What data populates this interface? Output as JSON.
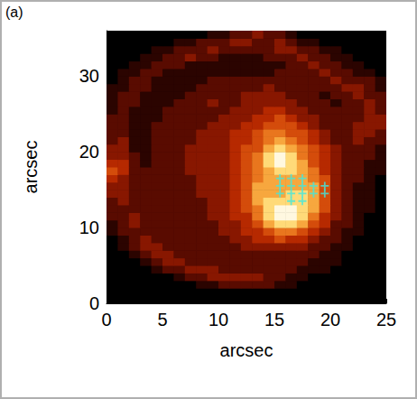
{
  "chart_data": {
    "type": "heatmap",
    "panel": "(a)",
    "xlabel": "arcsec",
    "ylabel": "arcsec",
    "xlim": [
      0,
      25
    ],
    "ylim": [
      0,
      36
    ],
    "xticks": [
      0,
      5,
      10,
      15,
      20,
      25
    ],
    "yticks": [
      0,
      10,
      20,
      30
    ],
    "grid": false,
    "x": [
      0,
      1,
      2,
      3,
      4,
      5,
      6,
      7,
      8,
      9,
      10,
      11,
      12,
      13,
      14,
      15,
      16,
      17,
      18,
      19,
      20,
      21,
      22,
      23,
      24
    ],
    "y": [
      0,
      1,
      2,
      3,
      4,
      5,
      6,
      7,
      8,
      9,
      10,
      11,
      12,
      13,
      14,
      15,
      16,
      17,
      18,
      19,
      20,
      21,
      22,
      23,
      24,
      25,
      26,
      27,
      28,
      29,
      30,
      31,
      32,
      33,
      34,
      35
    ],
    "color_range": [
      0,
      9
    ],
    "cells": [
      [
        0,
        0,
        0,
        0,
        0,
        0,
        0,
        0,
        0,
        0,
        0,
        0,
        0,
        0,
        0,
        0,
        0,
        0,
        0,
        0,
        0,
        0,
        0,
        0,
        0
      ],
      [
        0,
        0,
        0,
        0,
        0,
        0,
        0,
        0,
        0,
        0,
        0,
        0,
        0,
        0,
        0,
        0,
        0,
        0,
        0,
        0,
        0,
        0,
        0,
        0,
        0
      ],
      [
        0,
        0,
        0,
        0,
        0,
        0,
        0,
        0,
        1,
        1,
        2,
        2,
        2,
        2,
        2,
        1,
        1,
        0,
        0,
        0,
        0,
        0,
        0,
        0,
        0
      ],
      [
        0,
        0,
        0,
        0,
        0,
        0,
        1,
        2,
        2,
        3,
        3,
        3,
        3,
        3,
        2,
        2,
        1,
        1,
        0,
        0,
        0,
        0,
        0,
        0,
        0
      ],
      [
        0,
        0,
        0,
        0,
        1,
        2,
        2,
        3,
        3,
        3,
        2,
        2,
        2,
        2,
        2,
        2,
        2,
        1,
        1,
        1,
        0,
        0,
        0,
        0,
        0
      ],
      [
        0,
        0,
        0,
        1,
        2,
        3,
        3,
        2,
        2,
        2,
        2,
        2,
        2,
        2,
        2,
        2,
        2,
        2,
        1,
        1,
        1,
        0,
        0,
        0,
        0
      ],
      [
        0,
        0,
        1,
        2,
        3,
        3,
        2,
        2,
        2,
        2,
        2,
        2,
        2,
        2,
        2,
        2,
        2,
        2,
        2,
        1,
        1,
        0,
        0,
        0,
        0
      ],
      [
        0,
        1,
        2,
        3,
        3,
        2,
        2,
        2,
        2,
        2,
        2,
        2,
        3,
        3,
        3,
        3,
        3,
        3,
        2,
        2,
        1,
        1,
        0,
        0,
        0
      ],
      [
        0,
        1,
        2,
        3,
        2,
        2,
        2,
        2,
        2,
        2,
        2,
        3,
        3,
        4,
        4,
        5,
        4,
        4,
        3,
        2,
        2,
        1,
        0,
        0,
        0
      ],
      [
        1,
        2,
        2,
        2,
        2,
        2,
        2,
        2,
        2,
        2,
        3,
        3,
        4,
        4,
        5,
        6,
        6,
        5,
        4,
        3,
        2,
        1,
        1,
        0,
        0
      ],
      [
        1,
        2,
        3,
        2,
        2,
        2,
        2,
        2,
        2,
        2,
        3,
        3,
        4,
        5,
        7,
        8,
        8,
        7,
        5,
        4,
        2,
        2,
        1,
        0,
        0
      ],
      [
        2,
        2,
        3,
        2,
        2,
        2,
        2,
        2,
        2,
        3,
        3,
        4,
        4,
        6,
        8,
        9,
        9,
        8,
        6,
        4,
        3,
        2,
        1,
        0,
        0
      ],
      [
        2,
        2,
        2,
        2,
        2,
        2,
        2,
        2,
        2,
        3,
        3,
        4,
        5,
        6,
        8,
        9,
        9,
        8,
        7,
        5,
        3,
        2,
        1,
        1,
        0
      ],
      [
        2,
        3,
        2,
        2,
        2,
        2,
        2,
        2,
        2,
        3,
        3,
        4,
        5,
        7,
        8,
        8,
        8,
        8,
        7,
        5,
        3,
        2,
        1,
        1,
        0
      ],
      [
        3,
        3,
        2,
        2,
        2,
        2,
        2,
        2,
        3,
        3,
        3,
        4,
        5,
        7,
        7,
        7,
        8,
        8,
        7,
        5,
        3,
        2,
        1,
        1,
        0
      ],
      [
        3,
        3,
        2,
        2,
        2,
        2,
        2,
        2,
        3,
        3,
        3,
        4,
        5,
        7,
        7,
        7,
        7,
        7,
        7,
        5,
        3,
        2,
        1,
        1,
        0
      ],
      [
        4,
        3,
        2,
        2,
        2,
        2,
        2,
        2,
        3,
        3,
        3,
        4,
        5,
        6,
        7,
        7,
        7,
        7,
        6,
        5,
        3,
        2,
        2,
        1,
        0
      ],
      [
        5,
        4,
        2,
        2,
        2,
        2,
        2,
        3,
        3,
        3,
        3,
        4,
        5,
        6,
        7,
        8,
        8,
        7,
        6,
        4,
        3,
        2,
        2,
        1,
        1
      ],
      [
        4,
        4,
        2,
        1,
        2,
        2,
        2,
        3,
        3,
        3,
        3,
        4,
        5,
        6,
        8,
        9,
        8,
        7,
        5,
        4,
        3,
        2,
        2,
        1,
        1
      ],
      [
        3,
        3,
        2,
        1,
        2,
        2,
        2,
        3,
        3,
        3,
        3,
        4,
        5,
        6,
        8,
        9,
        8,
        6,
        5,
        4,
        3,
        2,
        2,
        2,
        1
      ],
      [
        3,
        3,
        1,
        1,
        2,
        2,
        2,
        3,
        3,
        3,
        3,
        4,
        5,
        5,
        7,
        8,
        7,
        6,
        5,
        4,
        3,
        2,
        2,
        2,
        1
      ],
      [
        2,
        3,
        1,
        1,
        2,
        2,
        2,
        2,
        3,
        3,
        3,
        4,
        4,
        5,
        6,
        7,
        6,
        5,
        4,
        3,
        2,
        2,
        3,
        2,
        2
      ],
      [
        2,
        2,
        1,
        1,
        2,
        2,
        2,
        2,
        3,
        3,
        3,
        4,
        4,
        5,
        6,
        6,
        5,
        5,
        4,
        3,
        2,
        2,
        3,
        3,
        2
      ],
      [
        2,
        2,
        1,
        1,
        2,
        2,
        2,
        2,
        2,
        3,
        3,
        3,
        4,
        4,
        5,
        5,
        5,
        4,
        3,
        2,
        2,
        2,
        3,
        3,
        3
      ],
      [
        2,
        2,
        1,
        1,
        1,
        2,
        2,
        2,
        2,
        2,
        3,
        3,
        3,
        4,
        4,
        5,
        4,
        3,
        3,
        2,
        2,
        2,
        2,
        3,
        3
      ],
      [
        1,
        2,
        1,
        1,
        1,
        2,
        2,
        2,
        2,
        2,
        2,
        3,
        3,
        3,
        4,
        4,
        3,
        3,
        2,
        2,
        2,
        2,
        2,
        3,
        2
      ],
      [
        1,
        2,
        2,
        1,
        1,
        1,
        2,
        2,
        2,
        3,
        2,
        2,
        3,
        3,
        3,
        3,
        3,
        2,
        2,
        2,
        1,
        2,
        2,
        3,
        2
      ],
      [
        1,
        2,
        2,
        1,
        1,
        1,
        1,
        2,
        2,
        2,
        2,
        2,
        3,
        3,
        3,
        3,
        2,
        2,
        2,
        1,
        2,
        2,
        3,
        2,
        2
      ],
      [
        1,
        1,
        2,
        2,
        1,
        1,
        1,
        1,
        2,
        2,
        2,
        2,
        2,
        2,
        3,
        2,
        2,
        2,
        2,
        2,
        2,
        3,
        3,
        2,
        1
      ],
      [
        0,
        1,
        2,
        2,
        1,
        1,
        1,
        1,
        1,
        2,
        2,
        2,
        2,
        2,
        2,
        2,
        2,
        2,
        2,
        2,
        3,
        2,
        2,
        2,
        1
      ],
      [
        0,
        1,
        1,
        2,
        2,
        1,
        1,
        1,
        1,
        1,
        1,
        1,
        1,
        1,
        1,
        2,
        2,
        2,
        2,
        3,
        2,
        2,
        1,
        1,
        0
      ],
      [
        0,
        0,
        1,
        1,
        2,
        2,
        2,
        1,
        1,
        1,
        1,
        1,
        1,
        1,
        1,
        1,
        2,
        2,
        3,
        2,
        2,
        1,
        1,
        0,
        0
      ],
      [
        0,
        0,
        0,
        1,
        1,
        2,
        2,
        3,
        2,
        2,
        1,
        1,
        1,
        1,
        2,
        2,
        2,
        3,
        2,
        2,
        1,
        1,
        0,
        0,
        0
      ],
      [
        0,
        0,
        0,
        0,
        1,
        1,
        2,
        2,
        2,
        3,
        2,
        2,
        2,
        2,
        2,
        3,
        3,
        2,
        2,
        1,
        1,
        0,
        0,
        0,
        0
      ],
      [
        0,
        0,
        0,
        0,
        0,
        0,
        1,
        1,
        2,
        2,
        2,
        3,
        3,
        2,
        2,
        3,
        2,
        1,
        1,
        0,
        0,
        0,
        0,
        0,
        0
      ],
      [
        0,
        0,
        0,
        0,
        0,
        0,
        0,
        0,
        0,
        1,
        1,
        2,
        2,
        3,
        2,
        2,
        1,
        0,
        0,
        0,
        0,
        0,
        0,
        0,
        0
      ]
    ],
    "series": [
      {
        "type": "scatter",
        "color": "#3ee8e0",
        "marker": "cross",
        "x": [
          15.5,
          16.5,
          17.5,
          15.5,
          16.5,
          17.5,
          18.5,
          19.5,
          15.5,
          16.5,
          17.5,
          18.5,
          19.5,
          16.5,
          17.5
        ],
        "y": [
          16.5,
          16.5,
          16.5,
          15.5,
          15.5,
          15.5,
          15.5,
          15.5,
          14.5,
          14.5,
          14.5,
          14.5,
          14.5,
          13.5,
          13.5
        ]
      }
    ]
  }
}
